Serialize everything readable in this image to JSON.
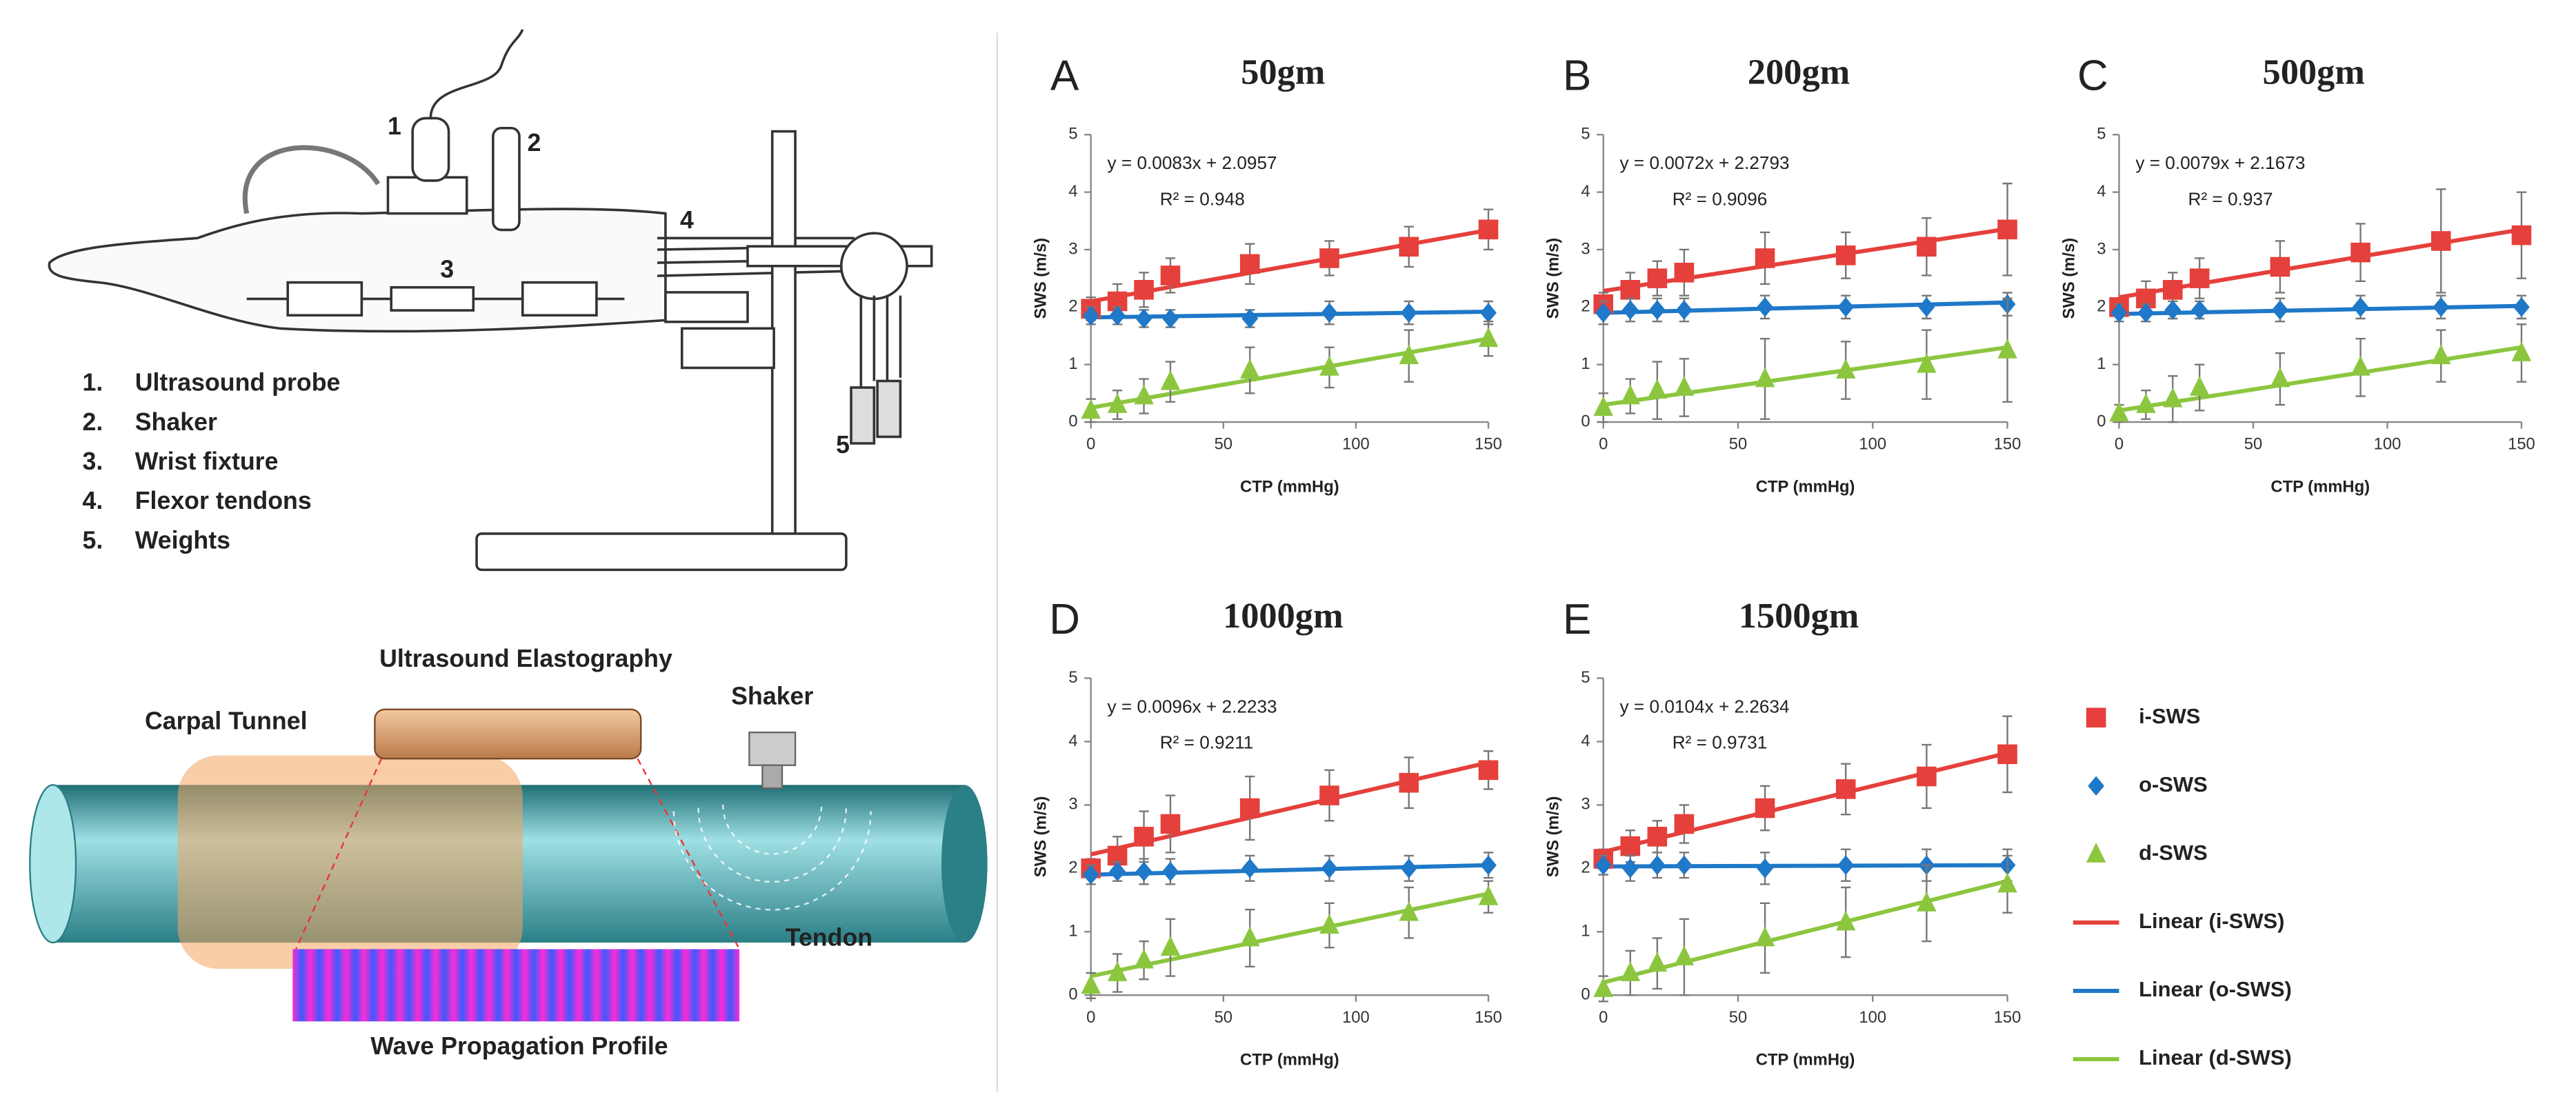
{
  "chart_data": [
    {
      "type": "scatter",
      "panel": "A",
      "title": "50gm",
      "x_label": "CTP (mmHg)",
      "y_label": "SWS (m/s)",
      "equation": "y = 0.0083x + 2.0957",
      "r_squared": "R² = 0.948",
      "xlim": [
        0,
        150
      ],
      "xticks": [
        0,
        50,
        100,
        150
      ],
      "ylim": [
        0,
        5
      ],
      "yticks": [
        0,
        1,
        2,
        3,
        4,
        5
      ],
      "series": [
        {
          "name": "i-SWS",
          "color": "#e5403c",
          "marker": "square",
          "x": [
            0,
            10,
            20,
            30,
            60,
            90,
            120,
            150
          ],
          "values": [
            1.97,
            2.1,
            2.3,
            2.55,
            2.75,
            2.85,
            3.05,
            3.35
          ],
          "errors": [
            0.2,
            0.3,
            0.3,
            0.3,
            0.35,
            0.3,
            0.35,
            0.35
          ]
        },
        {
          "name": "o-SWS",
          "color": "#1f78c8",
          "marker": "diamond",
          "x": [
            0,
            10,
            20,
            30,
            60,
            90,
            120,
            150
          ],
          "values": [
            1.85,
            1.85,
            1.8,
            1.8,
            1.8,
            1.9,
            1.9,
            1.9
          ],
          "errors": [
            0.15,
            0.15,
            0.15,
            0.15,
            0.15,
            0.2,
            0.2,
            0.2
          ]
        },
        {
          "name": "d-SWS",
          "color": "#8cc63f",
          "marker": "triangle",
          "x": [
            0,
            10,
            20,
            30,
            60,
            90,
            120,
            150
          ],
          "values": [
            0.2,
            0.3,
            0.45,
            0.7,
            0.9,
            0.95,
            1.15,
            1.45
          ],
          "errors": [
            0.2,
            0.25,
            0.3,
            0.35,
            0.4,
            0.35,
            0.45,
            0.3
          ]
        },
        {
          "name": "Linear (i-SWS)",
          "color": "#e5403c",
          "marker": "line",
          "x": [
            0,
            150
          ],
          "values": [
            2.1,
            3.34
          ]
        },
        {
          "name": "Linear (o-SWS)",
          "color": "#1f78c8",
          "marker": "line",
          "x": [
            0,
            150
          ],
          "values": [
            1.82,
            1.92
          ]
        },
        {
          "name": "Linear (d-SWS)",
          "color": "#8cc63f",
          "marker": "line",
          "x": [
            0,
            150
          ],
          "values": [
            0.25,
            1.45
          ]
        }
      ]
    },
    {
      "type": "scatter",
      "panel": "B",
      "title": "200gm",
      "x_label": "CTP (mmHg)",
      "y_label": "SWS (m/s)",
      "equation": "y = 0.0072x + 2.2793",
      "r_squared": "R² = 0.9096",
      "xlim": [
        0,
        150
      ],
      "xticks": [
        0,
        50,
        100,
        150
      ],
      "ylim": [
        0,
        5
      ],
      "yticks": [
        0,
        1,
        2,
        3,
        4,
        5
      ],
      "series": [
        {
          "name": "i-SWS",
          "color": "#e5403c",
          "marker": "square",
          "x": [
            0,
            10,
            20,
            30,
            60,
            90,
            120,
            150
          ],
          "values": [
            2.05,
            2.3,
            2.5,
            2.6,
            2.85,
            2.9,
            3.05,
            3.35
          ],
          "errors": [
            0.2,
            0.3,
            0.3,
            0.4,
            0.45,
            0.4,
            0.5,
            0.8
          ]
        },
        {
          "name": "o-SWS",
          "color": "#1f78c8",
          "marker": "diamond",
          "x": [
            0,
            10,
            20,
            30,
            60,
            90,
            120,
            150
          ],
          "values": [
            1.9,
            1.95,
            1.95,
            1.95,
            2.0,
            2.0,
            2.0,
            2.05
          ],
          "errors": [
            0.2,
            0.2,
            0.2,
            0.2,
            0.2,
            0.2,
            0.2,
            0.2
          ]
        },
        {
          "name": "d-SWS",
          "color": "#8cc63f",
          "marker": "triangle",
          "x": [
            0,
            10,
            20,
            30,
            60,
            90,
            120,
            150
          ],
          "values": [
            0.25,
            0.45,
            0.55,
            0.6,
            0.75,
            0.9,
            1.0,
            1.25
          ],
          "errors": [
            0.25,
            0.3,
            0.5,
            0.5,
            0.7,
            0.5,
            0.6,
            0.9
          ]
        },
        {
          "name": "Linear (i-SWS)",
          "color": "#e5403c",
          "marker": "line",
          "x": [
            0,
            150
          ],
          "values": [
            2.28,
            3.36
          ]
        },
        {
          "name": "Linear (o-SWS)",
          "color": "#1f78c8",
          "marker": "line",
          "x": [
            0,
            150
          ],
          "values": [
            1.9,
            2.08
          ]
        },
        {
          "name": "Linear (d-SWS)",
          "color": "#8cc63f",
          "marker": "line",
          "x": [
            0,
            150
          ],
          "values": [
            0.3,
            1.3
          ]
        }
      ]
    },
    {
      "type": "scatter",
      "panel": "C",
      "title": "500gm",
      "x_label": "CTP (mmHg)",
      "y_label": "SWS (m/s)",
      "equation": "y = 0.0079x + 2.1673",
      "r_squared": "R² = 0.937",
      "xlim": [
        0,
        150
      ],
      "xticks": [
        0,
        50,
        100,
        150
      ],
      "ylim": [
        0,
        5
      ],
      "yticks": [
        0,
        1,
        2,
        3,
        4,
        5
      ],
      "series": [
        {
          "name": "i-SWS",
          "color": "#e5403c",
          "marker": "square",
          "x": [
            0,
            10,
            20,
            30,
            60,
            90,
            120,
            150
          ],
          "values": [
            2.0,
            2.15,
            2.3,
            2.5,
            2.7,
            2.95,
            3.15,
            3.25
          ],
          "errors": [
            0.15,
            0.3,
            0.3,
            0.35,
            0.45,
            0.5,
            0.9,
            0.75
          ]
        },
        {
          "name": "o-SWS",
          "color": "#1f78c8",
          "marker": "diamond",
          "x": [
            0,
            10,
            20,
            30,
            60,
            90,
            120,
            150
          ],
          "values": [
            1.9,
            1.9,
            1.95,
            1.95,
            1.95,
            2.0,
            2.0,
            2.0
          ],
          "errors": [
            0.15,
            0.15,
            0.15,
            0.15,
            0.2,
            0.2,
            0.2,
            0.2
          ]
        },
        {
          "name": "d-SWS",
          "color": "#8cc63f",
          "marker": "triangle",
          "x": [
            0,
            10,
            20,
            30,
            60,
            90,
            120,
            150
          ],
          "values": [
            0.15,
            0.3,
            0.4,
            0.6,
            0.75,
            0.95,
            1.15,
            1.2
          ],
          "errors": [
            0.15,
            0.25,
            0.4,
            0.4,
            0.45,
            0.5,
            0.45,
            0.5
          ]
        },
        {
          "name": "Linear (i-SWS)",
          "color": "#e5403c",
          "marker": "line",
          "x": [
            0,
            150
          ],
          "values": [
            2.17,
            3.35
          ]
        },
        {
          "name": "Linear (o-SWS)",
          "color": "#1f78c8",
          "marker": "line",
          "x": [
            0,
            150
          ],
          "values": [
            1.88,
            2.02
          ]
        },
        {
          "name": "Linear (d-SWS)",
          "color": "#8cc63f",
          "marker": "line",
          "x": [
            0,
            150
          ],
          "values": [
            0.2,
            1.3
          ]
        }
      ]
    },
    {
      "type": "scatter",
      "panel": "D",
      "title": "1000gm",
      "x_label": "CTP (mmHg)",
      "y_label": "SWS (m/s)",
      "equation": "y = 0.0096x + 2.2233",
      "r_squared": "R² = 0.9211",
      "xlim": [
        0,
        150
      ],
      "xticks": [
        0,
        50,
        100,
        150
      ],
      "ylim": [
        0,
        5
      ],
      "yticks": [
        0,
        1,
        2,
        3,
        4,
        5
      ],
      "series": [
        {
          "name": "i-SWS",
          "color": "#e5403c",
          "marker": "square",
          "x": [
            0,
            10,
            20,
            30,
            60,
            90,
            120,
            150
          ],
          "values": [
            2.0,
            2.2,
            2.5,
            2.7,
            2.95,
            3.15,
            3.35,
            3.55
          ],
          "errors": [
            0.15,
            0.3,
            0.4,
            0.45,
            0.5,
            0.4,
            0.4,
            0.3
          ]
        },
        {
          "name": "o-SWS",
          "color": "#1f78c8",
          "marker": "diamond",
          "x": [
            0,
            10,
            20,
            30,
            60,
            90,
            120,
            150
          ],
          "values": [
            1.9,
            1.95,
            1.95,
            1.95,
            2.0,
            2.0,
            2.0,
            2.05
          ],
          "errors": [
            0.15,
            0.15,
            0.2,
            0.2,
            0.2,
            0.2,
            0.2,
            0.2
          ]
        },
        {
          "name": "d-SWS",
          "color": "#8cc63f",
          "marker": "triangle",
          "x": [
            0,
            10,
            20,
            30,
            60,
            90,
            120,
            150
          ],
          "values": [
            0.15,
            0.35,
            0.55,
            0.75,
            0.9,
            1.1,
            1.3,
            1.55
          ],
          "errors": [
            0.2,
            0.3,
            0.3,
            0.45,
            0.45,
            0.35,
            0.4,
            0.25
          ]
        },
        {
          "name": "Linear (i-SWS)",
          "color": "#e5403c",
          "marker": "line",
          "x": [
            0,
            150
          ],
          "values": [
            2.22,
            3.67
          ]
        },
        {
          "name": "Linear (o-SWS)",
          "color": "#1f78c8",
          "marker": "line",
          "x": [
            0,
            150
          ],
          "values": [
            1.9,
            2.05
          ]
        },
        {
          "name": "Linear (d-SWS)",
          "color": "#8cc63f",
          "marker": "line",
          "x": [
            0,
            150
          ],
          "values": [
            0.3,
            1.6
          ]
        }
      ]
    },
    {
      "type": "scatter",
      "panel": "E",
      "title": "1500gm",
      "x_label": "CTP (mmHg)",
      "y_label": "SWS (m/s)",
      "equation": "y = 0.0104x + 2.2634",
      "r_squared": "R² = 0.9731",
      "xlim": [
        0,
        150
      ],
      "xticks": [
        0,
        50,
        100,
        150
      ],
      "ylim": [
        0,
        5
      ],
      "yticks": [
        0,
        1,
        2,
        3,
        4,
        5
      ],
      "series": [
        {
          "name": "i-SWS",
          "color": "#e5403c",
          "marker": "square",
          "x": [
            0,
            10,
            20,
            30,
            60,
            90,
            120,
            150
          ],
          "values": [
            2.15,
            2.35,
            2.5,
            2.7,
            2.95,
            3.25,
            3.45,
            3.8
          ],
          "errors": [
            0.15,
            0.25,
            0.25,
            0.3,
            0.35,
            0.4,
            0.5,
            0.6
          ]
        },
        {
          "name": "o-SWS",
          "color": "#1f78c8",
          "marker": "diamond",
          "x": [
            0,
            10,
            20,
            30,
            60,
            90,
            120,
            150
          ],
          "values": [
            2.05,
            2.0,
            2.05,
            2.05,
            2.0,
            2.05,
            2.05,
            2.05
          ],
          "errors": [
            0.15,
            0.2,
            0.2,
            0.2,
            0.25,
            0.25,
            0.25,
            0.25
          ]
        },
        {
          "name": "d-SWS",
          "color": "#8cc63f",
          "marker": "triangle",
          "x": [
            0,
            10,
            20,
            30,
            60,
            90,
            120,
            150
          ],
          "values": [
            0.1,
            0.35,
            0.5,
            0.6,
            0.9,
            1.15,
            1.45,
            1.75
          ],
          "errors": [
            0.2,
            0.35,
            0.4,
            0.6,
            0.55,
            0.55,
            0.6,
            0.45
          ]
        },
        {
          "name": "Linear (i-SWS)",
          "color": "#e5403c",
          "marker": "line",
          "x": [
            0,
            150
          ],
          "values": [
            2.26,
            3.82
          ]
        },
        {
          "name": "Linear (o-SWS)",
          "color": "#1f78c8",
          "marker": "line",
          "x": [
            0,
            150
          ],
          "values": [
            2.03,
            2.05
          ]
        },
        {
          "name": "Linear (d-SWS)",
          "color": "#8cc63f",
          "marker": "line",
          "x": [
            0,
            150
          ],
          "values": [
            0.2,
            1.8
          ]
        }
      ]
    }
  ],
  "diagram": {
    "callouts": [
      "1",
      "2",
      "3",
      "4",
      "5"
    ],
    "list_numbers": [
      "1.",
      "2.",
      "3.",
      "4.",
      "5."
    ],
    "list_items": [
      "Ultrasound probe",
      "Shaker",
      "Wrist fixture",
      "Flexor tendons",
      "Weights"
    ],
    "elastography": "Ultrasound Elastography",
    "carpal_tunnel": "Carpal Tunnel",
    "shaker": "Shaker",
    "tendon": "Tendon",
    "profile": "Wave Propagation Profile"
  }
}
